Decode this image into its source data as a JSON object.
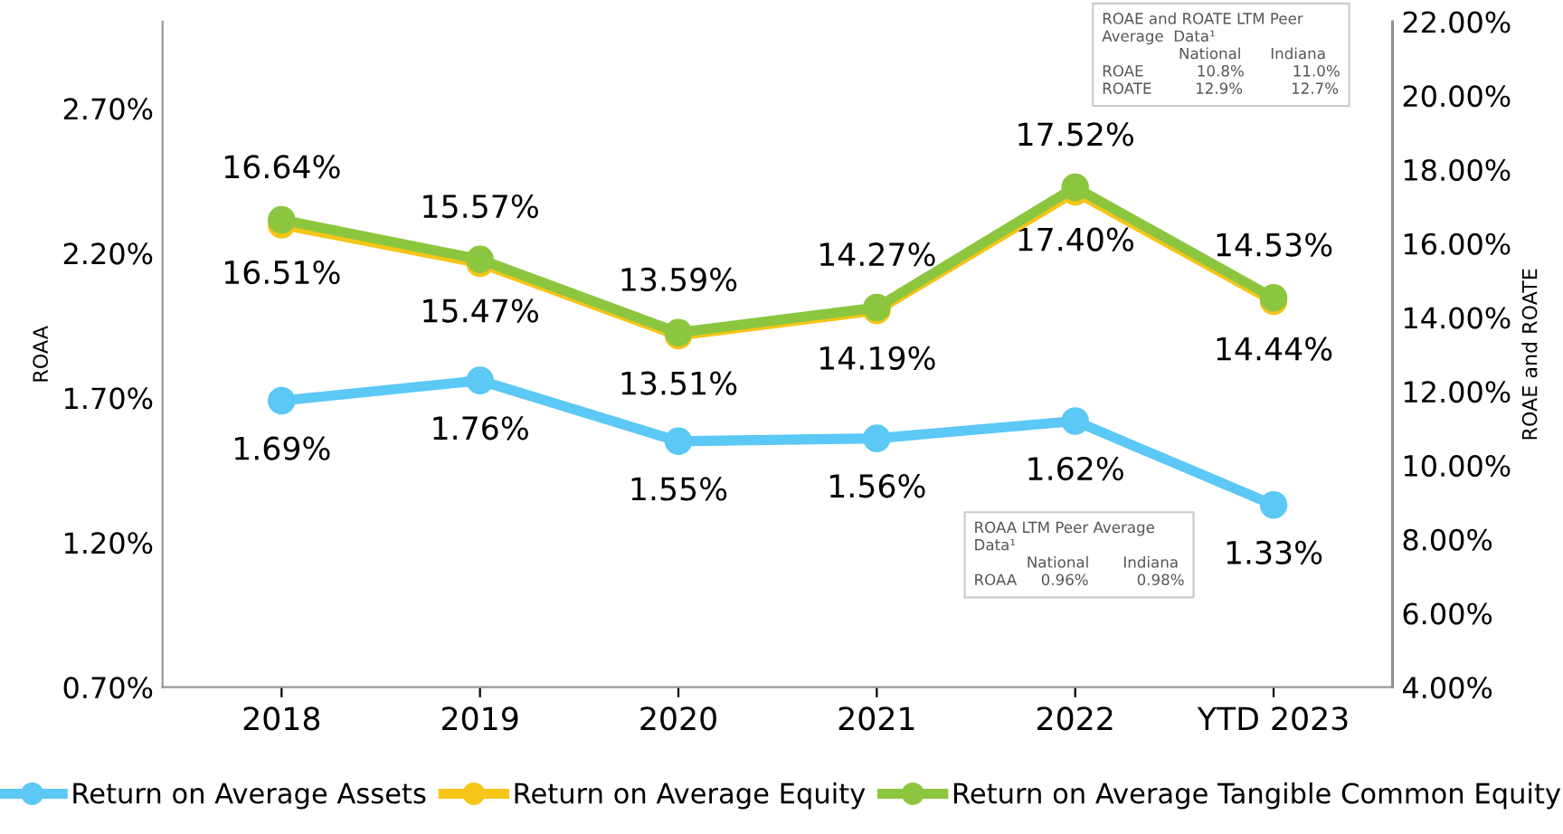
{
  "chart_data": {
    "type": "line",
    "categories": [
      "2018",
      "2019",
      "2020",
      "2021",
      "2022",
      "YTD 2023"
    ],
    "ylabel": "ROAA",
    "y2label": "ROAE and ROATE",
    "ylim": [
      0.7,
      3.0
    ],
    "yticks": [
      {
        "value": 0.7,
        "label": "0.70%"
      },
      {
        "value": 1.2,
        "label": "1.20%"
      },
      {
        "value": 1.7,
        "label": "1.70%"
      },
      {
        "value": 2.2,
        "label": "2.20%"
      },
      {
        "value": 2.7,
        "label": "2.70%"
      }
    ],
    "y2lim": [
      4,
      22
    ],
    "y2ticks": [
      {
        "value": 4,
        "label": "4.00%"
      },
      {
        "value": 6,
        "label": "6.00%"
      },
      {
        "value": 8,
        "label": "8.00%"
      },
      {
        "value": 10,
        "label": "10.00%"
      },
      {
        "value": 12,
        "label": "12.00%"
      },
      {
        "value": 14,
        "label": "14.00%"
      },
      {
        "value": 16,
        "label": "16.00%"
      },
      {
        "value": 18,
        "label": "18.00%"
      },
      {
        "value": 20,
        "label": "20.00%"
      },
      {
        "value": 22,
        "label": "22.00%"
      }
    ],
    "series": [
      {
        "name": "Return on Average Assets",
        "color": "#5bc8f5",
        "values": [
          1.69,
          1.76,
          1.55,
          1.56,
          1.62,
          1.33
        ],
        "value_labels": [
          "1.69%",
          "1.76%",
          "1.55%",
          "1.56%",
          "1.62%",
          "1.33%"
        ]
      },
      {
        "name": "Return on Average Equity",
        "color": "#f5c518",
        "axis": "y2",
        "values": [
          16.51,
          15.47,
          13.51,
          14.19,
          17.4,
          14.44
        ],
        "value_labels": [
          "16.51%",
          "15.47%",
          "13.51%",
          "14.19%",
          "17.40%",
          "14.44%"
        ]
      },
      {
        "name": "Return on Average Tangible Common Equity",
        "color": "#8cc63f",
        "axis": "y2",
        "values": [
          16.64,
          15.57,
          13.59,
          14.27,
          17.52,
          14.53
        ],
        "value_labels": [
          "16.64%",
          "15.57%",
          "13.59%",
          "14.27%",
          "17.52%",
          "14.53%"
        ]
      }
    ],
    "annotations": [
      "ROAE and ROATE LTM Peer\nAverage  Data¹\n                National      Indiana\nROAE           10.8%          11.0%\nROATE         12.9%          12.7%",
      "ROAA LTM Peer Average\nData¹\n           National       Indiana\nROAA     0.96%          0.98%"
    ],
    "marker": "circle",
    "line_style": "solid",
    "grid": false,
    "legend": "bottom"
  }
}
